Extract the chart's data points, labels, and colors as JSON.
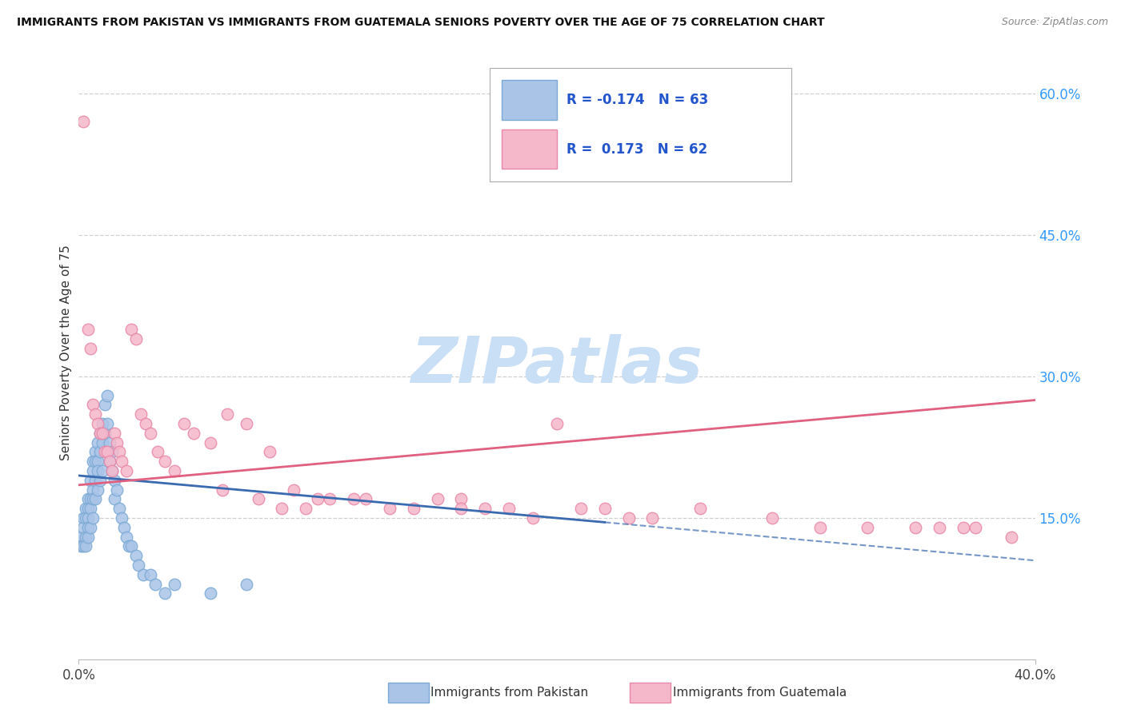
{
  "title": "IMMIGRANTS FROM PAKISTAN VS IMMIGRANTS FROM GUATEMALA SENIORS POVERTY OVER THE AGE OF 75 CORRELATION CHART",
  "source": "Source: ZipAtlas.com",
  "ylabel": "Seniors Poverty Over the Age of 75",
  "xlim": [
    0.0,
    0.4
  ],
  "ylim": [
    0.0,
    0.65
  ],
  "ytick_right_positions": [
    0.15,
    0.3,
    0.45,
    0.6
  ],
  "ytick_right_labels": [
    "15.0%",
    "30.0%",
    "45.0%",
    "60.0%"
  ],
  "grid_color": "#d0d0d0",
  "background_color": "#ffffff",
  "pakistan_color": "#aac4e8",
  "pakistan_edge_color": "#7baad4",
  "guatemala_color": "#f5b8cb",
  "guatemala_edge_color": "#e888a8",
  "pakistan_line_color": "#3a6ab0",
  "pakistan_line_solid_end": 0.22,
  "guatemala_line_color": "#e06080",
  "watermark_text": "ZIPatlas",
  "watermark_color": "#c8dff5",
  "legend_r_pakistan": "R = -0.174",
  "legend_n_pakistan": "N = 63",
  "legend_r_guatemala": "R =  0.173",
  "legend_n_guatemala": "N = 62",
  "pakistan_line_x0": 0.0,
  "pakistan_line_y0": 0.195,
  "pakistan_line_x1": 0.4,
  "pakistan_line_y1": 0.105,
  "guatemala_line_x0": 0.0,
  "guatemala_line_y0": 0.185,
  "guatemala_line_x1": 0.4,
  "guatemala_line_y1": 0.275,
  "pakistan_x": [
    0.001,
    0.001,
    0.002,
    0.002,
    0.002,
    0.003,
    0.003,
    0.003,
    0.003,
    0.004,
    0.004,
    0.004,
    0.004,
    0.004,
    0.005,
    0.005,
    0.005,
    0.005,
    0.006,
    0.006,
    0.006,
    0.006,
    0.006,
    0.007,
    0.007,
    0.007,
    0.007,
    0.008,
    0.008,
    0.008,
    0.008,
    0.009,
    0.009,
    0.009,
    0.01,
    0.01,
    0.01,
    0.011,
    0.011,
    0.012,
    0.012,
    0.013,
    0.013,
    0.014,
    0.014,
    0.015,
    0.015,
    0.016,
    0.017,
    0.018,
    0.019,
    0.02,
    0.021,
    0.022,
    0.024,
    0.025,
    0.027,
    0.03,
    0.032,
    0.036,
    0.04,
    0.055,
    0.07
  ],
  "pakistan_y": [
    0.13,
    0.12,
    0.15,
    0.14,
    0.12,
    0.16,
    0.15,
    0.13,
    0.12,
    0.17,
    0.16,
    0.15,
    0.14,
    0.13,
    0.19,
    0.17,
    0.16,
    0.14,
    0.21,
    0.2,
    0.18,
    0.17,
    0.15,
    0.22,
    0.21,
    0.19,
    0.17,
    0.23,
    0.21,
    0.2,
    0.18,
    0.24,
    0.22,
    0.19,
    0.25,
    0.23,
    0.2,
    0.27,
    0.24,
    0.28,
    0.25,
    0.23,
    0.21,
    0.22,
    0.2,
    0.19,
    0.17,
    0.18,
    0.16,
    0.15,
    0.14,
    0.13,
    0.12,
    0.12,
    0.11,
    0.1,
    0.09,
    0.09,
    0.08,
    0.07,
    0.08,
    0.07,
    0.08
  ],
  "guatemala_x": [
    0.004,
    0.005,
    0.006,
    0.007,
    0.008,
    0.009,
    0.01,
    0.011,
    0.012,
    0.013,
    0.014,
    0.015,
    0.016,
    0.017,
    0.018,
    0.02,
    0.022,
    0.024,
    0.026,
    0.028,
    0.03,
    0.033,
    0.036,
    0.04,
    0.044,
    0.048,
    0.055,
    0.062,
    0.07,
    0.08,
    0.09,
    0.1,
    0.115,
    0.13,
    0.15,
    0.17,
    0.19,
    0.21,
    0.23,
    0.26,
    0.29,
    0.31,
    0.33,
    0.35,
    0.37,
    0.39,
    0.16,
    0.18,
    0.2,
    0.22,
    0.24,
    0.06,
    0.075,
    0.085,
    0.095,
    0.105,
    0.12,
    0.14,
    0.16,
    0.36,
    0.375,
    0.002
  ],
  "guatemala_y": [
    0.35,
    0.33,
    0.27,
    0.26,
    0.25,
    0.24,
    0.24,
    0.22,
    0.22,
    0.21,
    0.2,
    0.24,
    0.23,
    0.22,
    0.21,
    0.2,
    0.35,
    0.34,
    0.26,
    0.25,
    0.24,
    0.22,
    0.21,
    0.2,
    0.25,
    0.24,
    0.23,
    0.26,
    0.25,
    0.22,
    0.18,
    0.17,
    0.17,
    0.16,
    0.17,
    0.16,
    0.15,
    0.16,
    0.15,
    0.16,
    0.15,
    0.14,
    0.14,
    0.14,
    0.14,
    0.13,
    0.17,
    0.16,
    0.25,
    0.16,
    0.15,
    0.18,
    0.17,
    0.16,
    0.16,
    0.17,
    0.17,
    0.16,
    0.16,
    0.14,
    0.14,
    0.57
  ]
}
